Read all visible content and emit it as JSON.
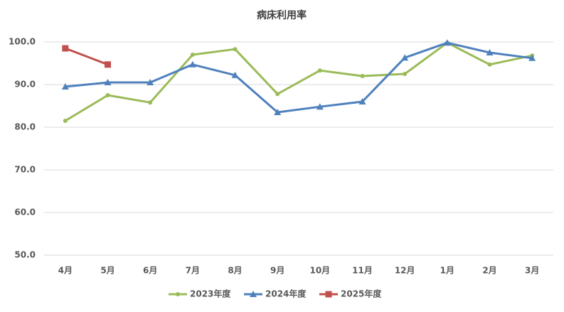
{
  "chart_data": {
    "type": "line",
    "title": "病床利用率",
    "categories": [
      "4月",
      "5月",
      "6月",
      "7月",
      "8月",
      "9月",
      "10月",
      "11月",
      "12月",
      "1月",
      "2月",
      "3月"
    ],
    "series": [
      {
        "name": "2023年度",
        "color": "#9bbb59",
        "marker": "circle",
        "values": [
          81.5,
          87.5,
          85.8,
          97.0,
          98.3,
          87.8,
          93.3,
          92.0,
          92.5,
          99.8,
          94.7,
          96.8
        ]
      },
      {
        "name": "2024年度",
        "color": "#4f81bd",
        "marker": "triangle",
        "values": [
          89.5,
          90.5,
          90.5,
          94.7,
          92.2,
          83.5,
          84.8,
          86.0,
          96.3,
          99.8,
          97.5,
          96.2
        ]
      },
      {
        "name": "2025年度",
        "color": "#c0504d",
        "marker": "square",
        "values": [
          98.5,
          94.7,
          null,
          null,
          null,
          null,
          null,
          null,
          null,
          null,
          null,
          null
        ]
      }
    ],
    "ylim": [
      50,
      100
    ],
    "yticks": [
      {
        "value": 50,
        "label": "50.0"
      },
      {
        "value": 60,
        "label": "60.0"
      },
      {
        "value": 70,
        "label": "70.0"
      },
      {
        "value": 80,
        "label": "80.0"
      },
      {
        "value": 90,
        "label": "90.0"
      },
      {
        "value": 100,
        "label": "100.0"
      }
    ],
    "grid": true,
    "legend": "bottom"
  }
}
